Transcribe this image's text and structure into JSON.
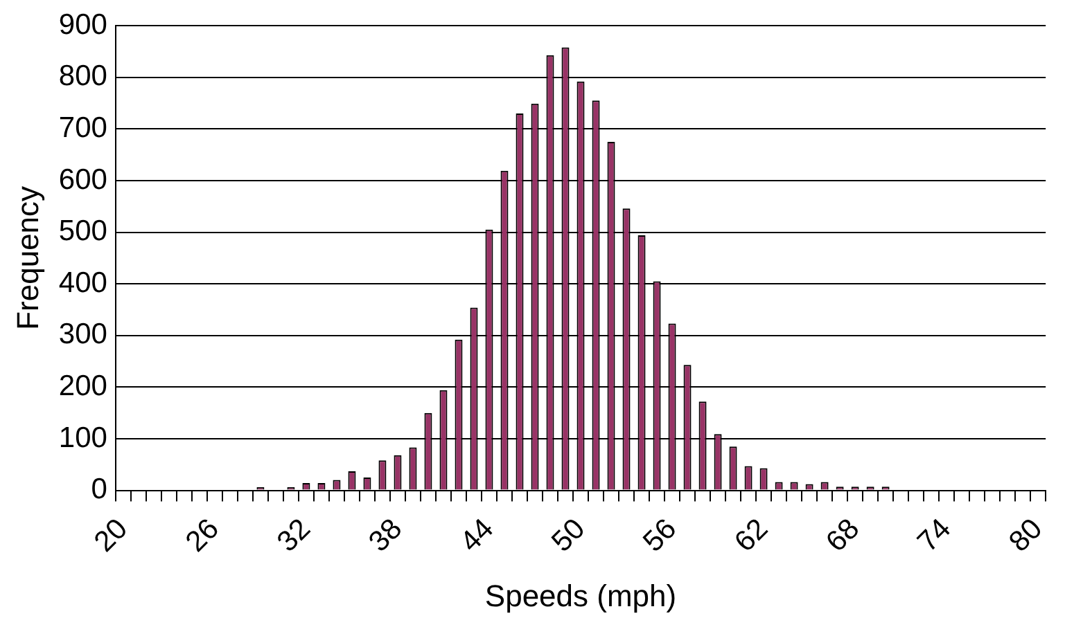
{
  "chart_data": {
    "type": "bar",
    "xlabel": "Speeds (mph)",
    "ylabel": "Frequency",
    "categories": [
      "20",
      null,
      null,
      null,
      null,
      null,
      "26",
      null,
      null,
      null,
      null,
      null,
      "32",
      null,
      null,
      null,
      null,
      null,
      "38",
      null,
      null,
      null,
      null,
      null,
      "44",
      null,
      null,
      null,
      null,
      null,
      "50",
      null,
      null,
      null,
      null,
      null,
      "56",
      null,
      null,
      null,
      null,
      null,
      "62",
      null,
      null,
      null,
      null,
      null,
      "68",
      null,
      null,
      null,
      null,
      null,
      "74",
      null,
      null,
      null,
      null,
      null,
      "80"
    ],
    "values": [
      0,
      0,
      0,
      0,
      0,
      0,
      0,
      0,
      0,
      6,
      0,
      6,
      14,
      14,
      20,
      37,
      25,
      58,
      68,
      83,
      150,
      194,
      292,
      354,
      505,
      619,
      730,
      749,
      843,
      858,
      792,
      755,
      675,
      546,
      494,
      405,
      323,
      243,
      172,
      109,
      85,
      47,
      43,
      16,
      16,
      12,
      16,
      7,
      7,
      7,
      7,
      0,
      0,
      0,
      0,
      0,
      0,
      0,
      0,
      0,
      0
    ],
    "color": "#993366",
    "ylim": [
      0,
      900
    ],
    "yticks": [
      0,
      100,
      200,
      300,
      400,
      500,
      600,
      700,
      800,
      900
    ],
    "grid": "y",
    "legend": false
  }
}
